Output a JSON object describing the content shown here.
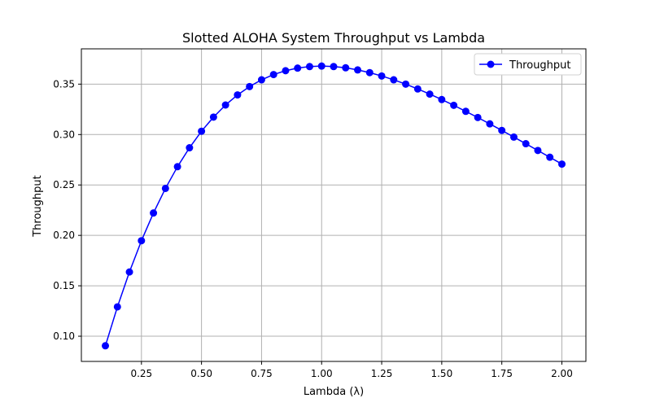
{
  "chart_data": {
    "type": "line",
    "title": "Slotted ALOHA System Throughput vs Lambda",
    "xlabel": "Lambda (λ)",
    "ylabel": "Throughput",
    "xlim": [
      0.0,
      2.1
    ],
    "ylim": [
      0.075,
      0.385
    ],
    "x_ticks": [
      0.25,
      0.5,
      0.75,
      1.0,
      1.25,
      1.5,
      1.75,
      2.0
    ],
    "x_tick_labels": [
      "0.25",
      "0.50",
      "0.75",
      "1.00",
      "1.25",
      "1.50",
      "1.75",
      "2.00"
    ],
    "y_ticks": [
      0.1,
      0.15,
      0.2,
      0.25,
      0.3,
      0.35
    ],
    "y_tick_labels": [
      "0.10",
      "0.15",
      "0.20",
      "0.25",
      "0.30",
      "0.35"
    ],
    "grid": true,
    "legend_position": "top-right",
    "x": [
      0.1,
      0.15,
      0.2,
      0.25,
      0.3,
      0.35,
      0.4,
      0.45,
      0.5,
      0.55,
      0.6,
      0.65,
      0.7,
      0.75,
      0.8,
      0.85,
      0.9,
      0.95,
      1.0,
      1.05,
      1.1,
      1.15,
      1.2,
      1.25,
      1.3,
      1.35,
      1.4,
      1.45,
      1.5,
      1.55,
      1.6,
      1.65,
      1.7,
      1.75,
      1.8,
      1.85,
      1.9,
      1.95,
      2.0
    ],
    "series": [
      {
        "name": "Throughput",
        "color": "#0000ff",
        "marker": "circle",
        "values": [
          0.0905,
          0.1291,
          0.1637,
          0.1947,
          0.2222,
          0.2466,
          0.2681,
          0.2869,
          0.3033,
          0.3173,
          0.3293,
          0.3393,
          0.3476,
          0.3543,
          0.3595,
          0.3633,
          0.3659,
          0.3674,
          0.3679,
          0.3674,
          0.3662,
          0.3641,
          0.3614,
          0.3581,
          0.3543,
          0.35,
          0.3452,
          0.3401,
          0.3347,
          0.329,
          0.323,
          0.3169,
          0.3106,
          0.3041,
          0.2975,
          0.2909,
          0.2842,
          0.2775,
          0.2707
        ]
      }
    ]
  }
}
